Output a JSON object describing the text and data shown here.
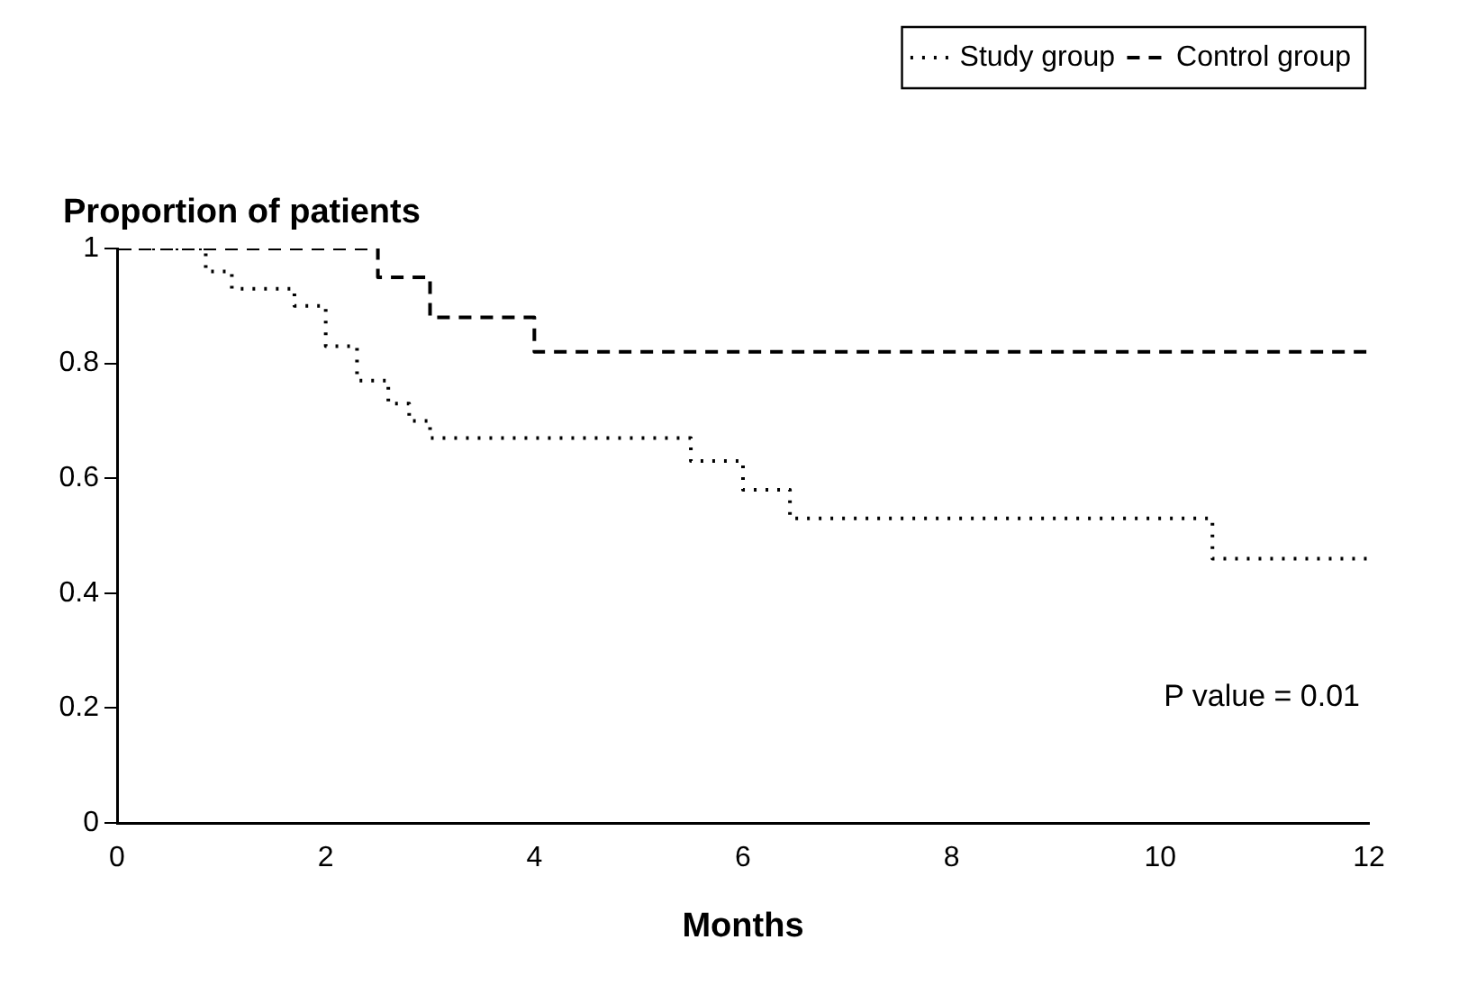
{
  "chart_data": {
    "type": "step",
    "xlabel": "Months",
    "ylabel": "Proportion of patients",
    "annotations": [
      "P value = 0.01"
    ],
    "xlim": [
      0,
      12
    ],
    "xticks": [
      0,
      2,
      4,
      6,
      8,
      10,
      12
    ],
    "ylim": [
      0,
      1
    ],
    "yticks": [
      0,
      0.2,
      0.4,
      0.6,
      0.8,
      1
    ],
    "grid": false,
    "legend": "top right",
    "marker": "none",
    "series": [
      {
        "name": "Study group",
        "color": "#000000",
        "line_style": "dotted",
        "x": [
          0,
          0.85,
          1.1,
          1.7,
          2.0,
          2.3,
          2.6,
          2.8,
          3.0,
          5.5,
          6.0,
          6.45,
          10.5,
          12
        ],
        "values": [
          1,
          0.96,
          0.93,
          0.9,
          0.83,
          0.77,
          0.73,
          0.7,
          0.67,
          0.63,
          0.58,
          0.53,
          0.46,
          0.46
        ]
      },
      {
        "name": "Control group",
        "color": "#000000",
        "line_style": "dashed",
        "x": [
          0,
          2.5,
          3.0,
          4.0,
          12
        ],
        "values": [
          1,
          0.95,
          0.88,
          0.82,
          0.82
        ]
      }
    ]
  }
}
